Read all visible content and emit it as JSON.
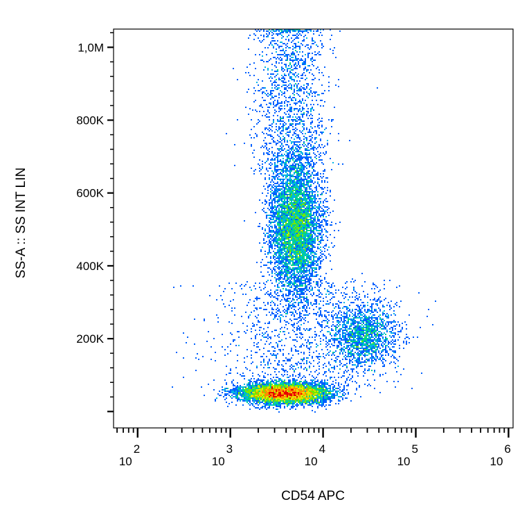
{
  "chart_data": {
    "type": "scatter",
    "title": "",
    "xlabel": "CD54 APC",
    "ylabel": "SS-A :: SS INT LIN",
    "x_scale": "log",
    "xlim": [
      55,
      1120000
    ],
    "ylim": [
      -45000,
      1050000
    ],
    "x_ticks": [
      {
        "value": 100,
        "base": "10",
        "exp": "2"
      },
      {
        "value": 1000,
        "base": "10",
        "exp": "3"
      },
      {
        "value": 10000,
        "base": "10",
        "exp": "4"
      },
      {
        "value": 100000,
        "base": "10",
        "exp": "5"
      },
      {
        "value": 1000000,
        "base": "10",
        "exp": "6"
      }
    ],
    "y_ticks": [
      {
        "value": 200000,
        "label": "200K"
      },
      {
        "value": 400000,
        "label": "400K"
      },
      {
        "value": 600000,
        "label": "600K"
      },
      {
        "value": 800000,
        "label": "800K"
      },
      {
        "value": 1000000,
        "label": "1,0M"
      }
    ],
    "colormap": [
      "#0000c8",
      "#0060ff",
      "#00b4e6",
      "#00d28c",
      "#78e600",
      "#e6e600",
      "#ff8c00",
      "#e60000"
    ],
    "populations": [
      {
        "label": "",
        "x_center": 3800,
        "y_center": 50000,
        "log_x_sd": 0.23,
        "y_sd": 14000,
        "weight": 0.4
      },
      {
        "label": "",
        "x_center": 5000,
        "y_center": 510000,
        "log_x_sd": 0.14,
        "y_sd": 95000,
        "weight": 0.34
      },
      {
        "label": "",
        "x_center": 28000,
        "y_center": 210000,
        "log_x_sd": 0.18,
        "y_sd": 45000,
        "weight": 0.1
      }
    ],
    "grid": false,
    "legend": "none"
  },
  "axes": {
    "x_title": "CD54 APC",
    "y_title": "SS-A :: SS INT LIN"
  }
}
